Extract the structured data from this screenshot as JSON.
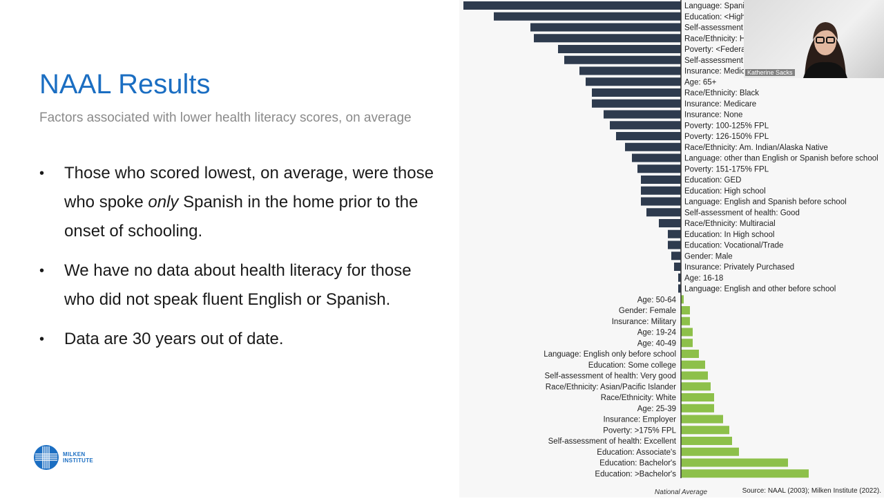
{
  "slide": {
    "title": "NAAL Results",
    "subtitle": "Factors associated with lower health literacy scores, on average",
    "bullets": [
      {
        "pre": "Those who scored lowest, on average, were those who spoke ",
        "em": "only",
        "post": " Spanish in the home prior to the onset of schooling."
      },
      {
        "pre": "We have no data about health literacy for those who did not speak fluent English or Spanish.",
        "em": "",
        "post": ""
      },
      {
        "pre": "Data are 30 years out of date.",
        "em": "",
        "post": ""
      }
    ],
    "logo": {
      "line1": "MILKEN",
      "line2": "INSTITUTE"
    }
  },
  "video": {
    "participant_name": "Katherine Sacks"
  },
  "colors": {
    "title": "#1b6ec2",
    "below_average": "#2e3b4e",
    "above_average": "#8dc04a"
  },
  "chart_data": {
    "type": "bar",
    "orientation": "horizontal",
    "baseline_label": "National Average",
    "source": "Source: NAAL (2003); Milken Institute (2022).",
    "units": "relative difference from national average (no scale printed; estimated)",
    "categories": [
      "Language: Spanis",
      "Education: <High",
      "Self-assessment",
      "Race/Ethnicity: H",
      "Poverty: <Federa",
      "Self-assessment",
      "Insurance: Medic",
      "Age: 65+",
      "Race/Ethnicity: Black",
      "Insurance: Medicare",
      "Insurance: None",
      "Poverty: 100-125% FPL",
      "Poverty: 126-150% FPL",
      "Race/Ethnicity: Am. Indian/Alaska Native",
      "Language: other than English or Spanish before school",
      "Poverty: 151-175% FPL",
      "Education: GED",
      "Education: High school",
      "Language: English and Spanish before school",
      "Self-assessment of health: Good",
      "Race/Ethnicity: Multiracial",
      "Education: In High school",
      "Education: Vocational/Trade",
      "Gender: Male",
      "Insurance: Privately Purchased",
      "Age: 16-18",
      "Language: English and other before school",
      "Age: 50-64",
      "Gender: Female",
      "Insurance: Military",
      "Age: 19-24",
      "Age: 40-49",
      "Language: English only before school",
      "Education: Some college",
      "Self-assessment of health: Very good",
      "Race/Ethnicity: Asian/Pacific Islander",
      "Race/Ethnicity: White",
      "Age: 25-39",
      "Insurance: Employer",
      "Poverty: >175% FPL",
      "Self-assessment of health: Excellent",
      "Education: Associate's",
      "Education: Bachelor's",
      "Education: >Bachelor's"
    ],
    "values": [
      -315,
      -271,
      -218,
      -213,
      -178,
      -169,
      -147,
      -138,
      -129,
      -129,
      -112,
      -103,
      -94,
      -81,
      -71,
      -63,
      -58,
      -58,
      -58,
      -50,
      -32,
      -19,
      -19,
      -14,
      -10,
      -4,
      -4,
      4,
      13,
      13,
      17,
      17,
      26,
      35,
      39,
      43,
      48,
      48,
      61,
      70,
      74,
      84,
      155,
      185
    ],
    "grid": false
  }
}
